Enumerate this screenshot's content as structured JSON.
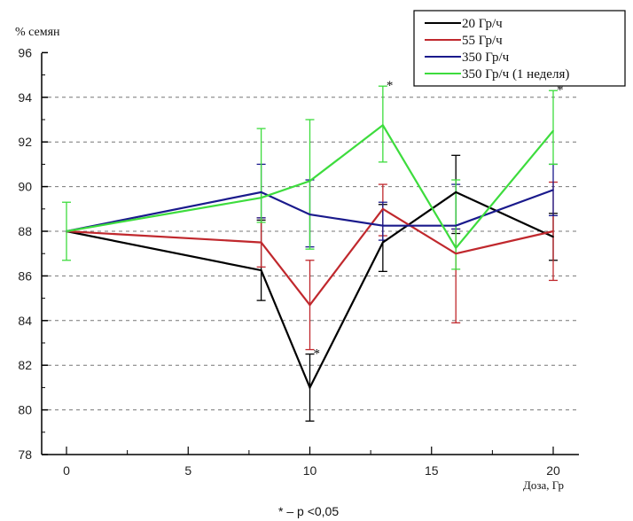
{
  "chart_data": {
    "type": "line",
    "title": "",
    "ylabel": "% семян",
    "xlabel": "Доза, Гр",
    "ylim": [
      78,
      96
    ],
    "xlim": [
      -1,
      21
    ],
    "yticks": [
      78,
      80,
      82,
      84,
      86,
      88,
      90,
      92,
      94,
      96
    ],
    "xticks": [
      0,
      5,
      10,
      15,
      20
    ],
    "grid": "horizontal dashed",
    "legend_position": "top-right",
    "footnote": "* – p <0,05",
    "x": [
      0,
      8,
      10,
      13,
      16,
      20
    ],
    "series": [
      {
        "name": "20 Гр/ч",
        "color": "#000000",
        "values": [
          88,
          86.25,
          81,
          87.5,
          89.75,
          87.75
        ],
        "err_low": [
          null,
          84.9,
          79.5,
          86.2,
          87.9,
          86.7
        ],
        "err_high": [
          null,
          88.5,
          82.5,
          89.2,
          91.4,
          88.8
        ]
      },
      {
        "name": "55 Гр/ч",
        "color": "#c0282d",
        "values": [
          88,
          87.5,
          84.7,
          89,
          87,
          88
        ],
        "err_low": [
          null,
          86.4,
          82.7,
          87.8,
          83.9,
          85.8
        ],
        "err_high": [
          null,
          88.6,
          86.7,
          90.1,
          88.1,
          90.2
        ]
      },
      {
        "name": "350 Гр/ч",
        "color": "#1a1a8c",
        "values": [
          88,
          89.75,
          88.75,
          88.25,
          88.25,
          89.85
        ],
        "err_low": [
          null,
          88.6,
          87.3,
          87.6,
          88.1,
          88.7
        ],
        "err_high": [
          null,
          91,
          90.3,
          89.3,
          90.1,
          91
        ]
      },
      {
        "name": "350 Гр/ч (1 неделя)",
        "color": "#3ddc3d",
        "values": [
          88,
          89.5,
          90.25,
          92.75,
          87.25,
          92.5
        ],
        "err_low": [
          86.7,
          88.4,
          87.2,
          91.1,
          86.3,
          91
        ],
        "err_high": [
          89.3,
          92.6,
          93,
          94.5,
          90.3,
          94.3
        ]
      }
    ],
    "annotations": [
      {
        "text": "*",
        "x": 10,
        "y": 82.5,
        "series": "20 Гр/ч"
      },
      {
        "text": "*",
        "x": 13,
        "y": 94.5,
        "series": "350 Гр/ч (1 неделя)"
      },
      {
        "text": "*",
        "x": 20,
        "y": 94.3,
        "series": "350 Гр/ч (1 неделя)"
      }
    ]
  }
}
